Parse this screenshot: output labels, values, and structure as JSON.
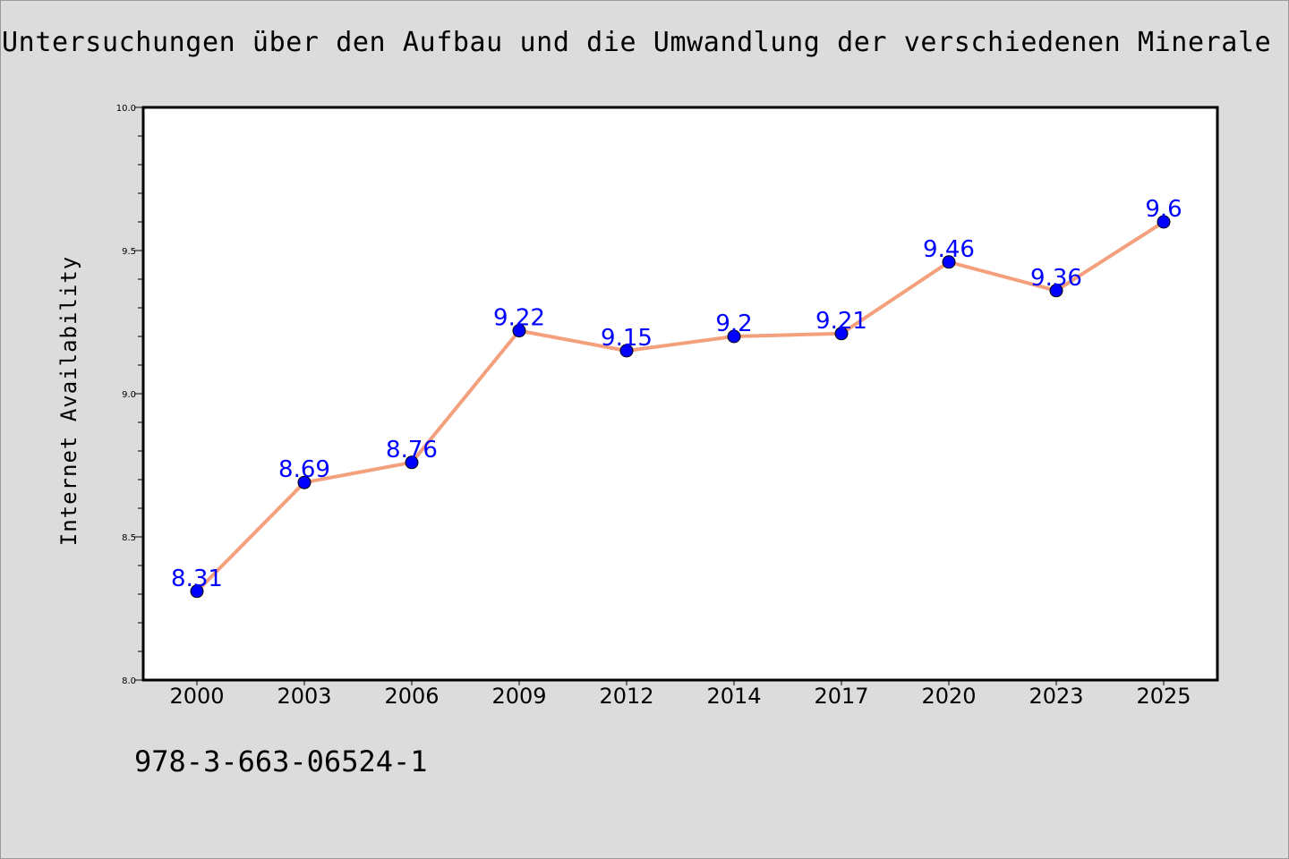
{
  "page": {
    "title": "Untersuchungen über den Aufbau und die Umwandlung der verschiedenen Minerale der",
    "footer_text": "978-3-663-06524-1"
  },
  "colors": {
    "background": "#dcdcdc",
    "plot_background": "#ffffff",
    "line": "#f4a07c",
    "marker": "#0000ff",
    "data_label": "#0000ff"
  },
  "chart_data": {
    "type": "line",
    "title": "Untersuchungen über den Aufbau und die Umwandlung der verschiedenen Minerale der",
    "xlabel": "",
    "ylabel": "Internet Availability",
    "categories": [
      "2000",
      "2003",
      "2006",
      "2009",
      "2012",
      "2014",
      "2017",
      "2020",
      "2023",
      "2025"
    ],
    "series": [
      {
        "values": [
          8.31,
          8.69,
          8.76,
          9.22,
          9.15,
          9.2,
          9.21,
          9.46,
          9.36,
          9.6
        ]
      }
    ],
    "data_labels": [
      "8.31",
      "8.69",
      "8.76",
      "9.22",
      "9.15",
      "9.2",
      "9.21",
      "9.46",
      "9.36",
      "9.6"
    ],
    "ylim": [
      8.0,
      10.0
    ],
    "yticks": [
      8.0,
      8.5,
      9.0,
      9.5,
      10.0
    ],
    "ytick_labels": [
      "8.0",
      "8.5",
      "9.0",
      "9.5",
      "10.0"
    ],
    "y_minor_step": 0.1,
    "grid": false,
    "legend": "none"
  }
}
